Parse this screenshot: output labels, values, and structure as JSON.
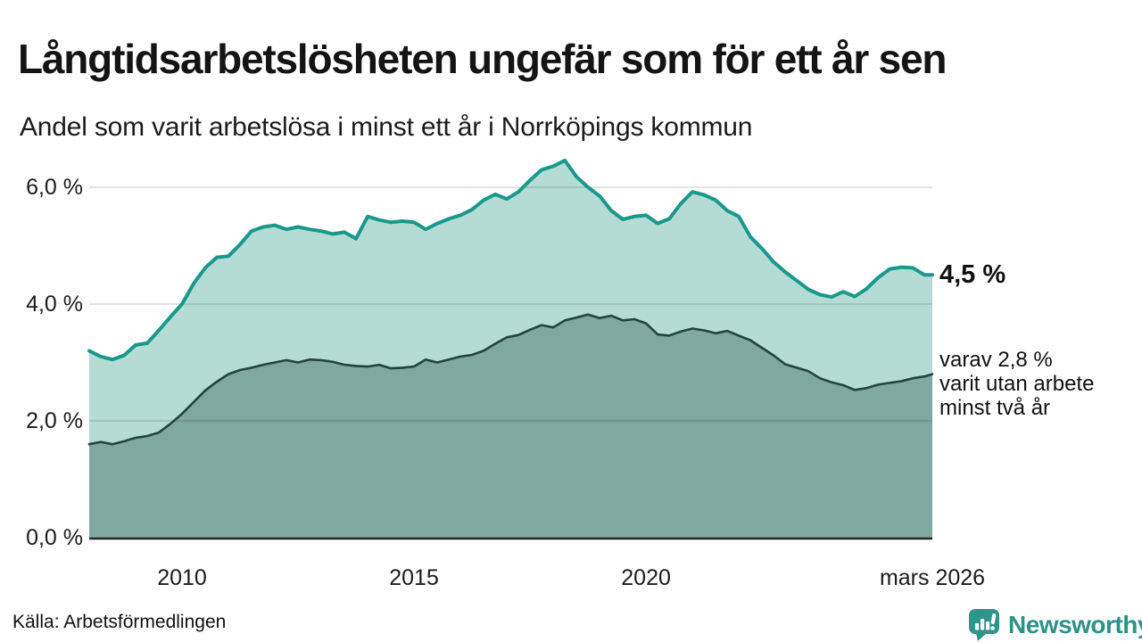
{
  "header": {
    "title": "Långtidsarbetslösheten ungefär som för ett år sen",
    "subtitle": "Andel som varit arbetslösa i minst ett år i Norrköpings kommun"
  },
  "annotations": {
    "latest_value": "4,5 %",
    "secondary_lines": [
      "varav 2,8 %",
      "varit utan arbete",
      "minst två år"
    ]
  },
  "footer": {
    "source": "Källa: Arbetsförmedlingen",
    "brand": "Newsworthy"
  },
  "colors": {
    "accent_teal_line": "#18998b",
    "light_fill": "#b5dbd5",
    "dark_fill": "#7ea8a0",
    "dark_line": "#23433e",
    "gridline": "#d9d9d9",
    "axis": "#262626",
    "brand_teal": "#2d9287"
  },
  "chart_data": {
    "type": "area",
    "title": "Långtidsarbetslösheten ungefär som för ett år sen",
    "subtitle": "Andel som varit arbetslösa i minst ett år i Norrköpings kommun",
    "source": "Källa: Arbetsförmedlingen",
    "x_unit": "decimal_year",
    "x_range": [
      2008,
      2026.17
    ],
    "y_range": [
      0,
      6.6
    ],
    "grid": "horizontal",
    "gridlines": [
      2,
      4,
      6
    ],
    "y_ticks": [
      {
        "value": 6,
        "label": "6,0 %"
      },
      {
        "value": 4,
        "label": "4,0 %"
      },
      {
        "value": 2,
        "label": "2,0 %"
      },
      {
        "value": 0,
        "label": "0,0 %"
      }
    ],
    "x_ticks": [
      {
        "value": 2010,
        "label": "2010"
      },
      {
        "value": 2015,
        "label": "2015"
      },
      {
        "value": 2020,
        "label": "2020"
      },
      {
        "value": 2026.17,
        "label": "mars 2026"
      }
    ],
    "x": [
      2008,
      2008.25,
      2008.5,
      2008.75,
      2009,
      2009.25,
      2009.5,
      2009.75,
      2010,
      2010.25,
      2010.5,
      2010.75,
      2011,
      2011.25,
      2011.5,
      2011.75,
      2012,
      2012.25,
      2012.5,
      2012.75,
      2013,
      2013.25,
      2013.5,
      2013.75,
      2014,
      2014.25,
      2014.5,
      2014.75,
      2015,
      2015.25,
      2015.5,
      2015.75,
      2016,
      2016.25,
      2016.5,
      2016.75,
      2017,
      2017.25,
      2017.5,
      2017.75,
      2018,
      2018.25,
      2018.5,
      2018.75,
      2019,
      2019.25,
      2019.5,
      2019.75,
      2020,
      2020.25,
      2020.5,
      2020.75,
      2021,
      2021.25,
      2021.5,
      2021.75,
      2022,
      2022.25,
      2022.5,
      2022.75,
      2023,
      2023.25,
      2023.5,
      2023.75,
      2024,
      2024.25,
      2024.5,
      2024.75,
      2025,
      2025.25,
      2025.5,
      2025.75,
      2026,
      2026.17
    ],
    "series": [
      {
        "name": "Andel arbetslösa minst ett år",
        "line_color": "#18998b",
        "fill_color": "#b5dbd5",
        "end_label": "4,5 %",
        "latest_value": 4.5,
        "values": [
          3.2,
          3.1,
          3.05,
          3.12,
          3.3,
          3.33,
          3.55,
          3.78,
          4.0,
          4.35,
          4.62,
          4.8,
          4.82,
          5.02,
          5.25,
          5.32,
          5.35,
          5.28,
          5.32,
          5.28,
          5.25,
          5.2,
          5.23,
          5.12,
          5.5,
          5.44,
          5.4,
          5.42,
          5.4,
          5.28,
          5.38,
          5.46,
          5.52,
          5.62,
          5.78,
          5.88,
          5.8,
          5.92,
          6.12,
          6.3,
          6.36,
          6.46,
          6.18,
          6.0,
          5.85,
          5.6,
          5.45,
          5.5,
          5.52,
          5.38,
          5.46,
          5.72,
          5.92,
          5.87,
          5.78,
          5.6,
          5.5,
          5.15,
          4.95,
          4.72,
          4.55,
          4.4,
          4.25,
          4.16,
          4.12,
          4.21,
          4.13,
          4.26,
          4.45,
          4.6,
          4.63,
          4.62,
          4.5,
          4.5
        ]
      },
      {
        "name": "Varav utan arbete minst två år",
        "line_color": "#23433e",
        "fill_color": "#7ea8a0",
        "end_label": "varav 2,8 % varit utan arbete minst två år",
        "latest_value": 2.8,
        "values": [
          1.6,
          1.64,
          1.6,
          1.65,
          1.71,
          1.74,
          1.8,
          1.95,
          2.12,
          2.32,
          2.52,
          2.67,
          2.8,
          2.87,
          2.91,
          2.96,
          3.0,
          3.04,
          3.0,
          3.05,
          3.04,
          3.01,
          2.96,
          2.94,
          2.93,
          2.96,
          2.9,
          2.91,
          2.93,
          3.05,
          3.0,
          3.05,
          3.1,
          3.13,
          3.2,
          3.32,
          3.43,
          3.47,
          3.56,
          3.64,
          3.6,
          3.72,
          3.77,
          3.82,
          3.76,
          3.8,
          3.72,
          3.74,
          3.67,
          3.48,
          3.46,
          3.53,
          3.58,
          3.55,
          3.5,
          3.54,
          3.46,
          3.38,
          3.25,
          3.12,
          2.97,
          2.91,
          2.85,
          2.73,
          2.66,
          2.61,
          2.53,
          2.56,
          2.62,
          2.65,
          2.68,
          2.73,
          2.76,
          2.8
        ]
      }
    ]
  }
}
